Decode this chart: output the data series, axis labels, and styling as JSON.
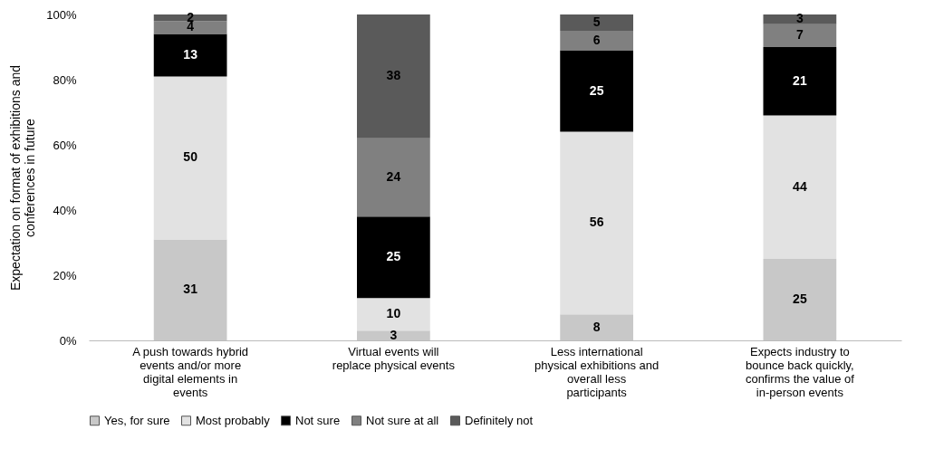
{
  "chart_data": {
    "type": "bar",
    "stacked": true,
    "ylabel": "Expectation on format of exhibitions and conferences in future",
    "categories": [
      "A push towards hybrid events and/or more digital elements in events",
      "Virtual events will replace physical events",
      "Less international physical exhibitions and overall less participants",
      "Expects industry to bounce back quickly, confirms the value of in-person events"
    ],
    "series": [
      {
        "name": "Yes, for sure",
        "color": "#c8c8c8",
        "values": [
          31,
          3,
          8,
          25
        ]
      },
      {
        "name": "Most probably",
        "color": "#e2e2e2",
        "values": [
          50,
          10,
          56,
          44
        ]
      },
      {
        "name": "Not sure",
        "color": "#000000",
        "values": [
          13,
          25,
          25,
          21
        ]
      },
      {
        "name": "Not sure at all",
        "color": "#808080",
        "values": [
          4,
          24,
          6,
          7
        ]
      },
      {
        "name": "Definitely not",
        "color": "#5a5a5a",
        "values": [
          2,
          38,
          5,
          3
        ]
      }
    ],
    "ylim": [
      0,
      100
    ],
    "yticks": [
      {
        "value": 0,
        "label": "0%"
      },
      {
        "value": 20,
        "label": "20%"
      },
      {
        "value": 40,
        "label": "40%"
      },
      {
        "value": 60,
        "label": "60%"
      },
      {
        "value": 80,
        "label": "80%"
      },
      {
        "value": 100,
        "label": "100%"
      }
    ],
    "data_labels": true,
    "legend": "bottom",
    "grid": false
  }
}
